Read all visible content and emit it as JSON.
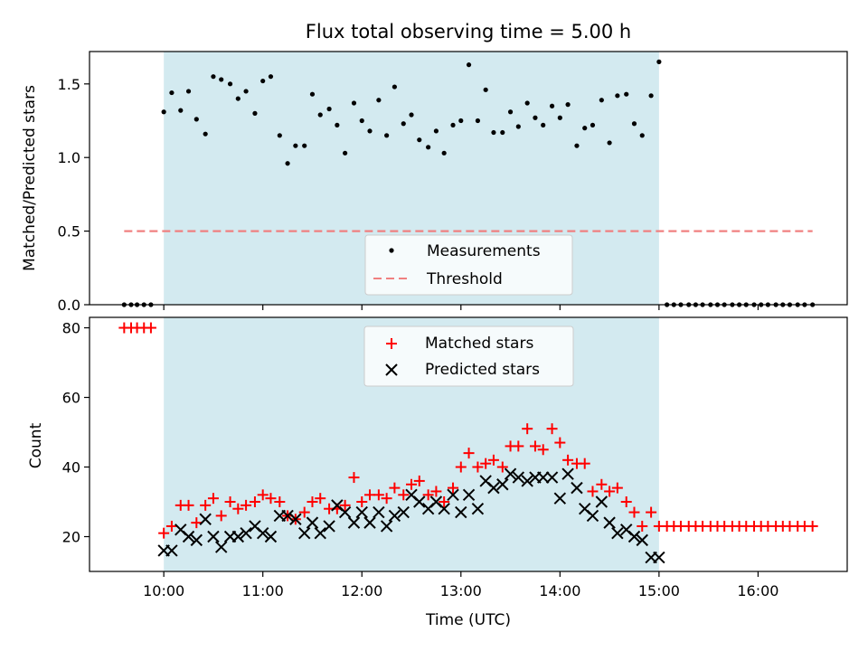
{
  "chart_data": [
    {
      "type": "scatter",
      "panel": "top",
      "title": "Flux total observing time = 5.00 h",
      "ylabel": "Matched/Predicted stars",
      "ylim": [
        0,
        1.72
      ],
      "yticks": [
        0.0,
        0.5,
        1.0,
        1.5
      ],
      "ytick_labels": [
        "0.0",
        "0.5",
        "1.0",
        "1.5"
      ],
      "observing_window": {
        "start_h": 10.0,
        "end_h": 15.0,
        "color": "#d3eaf0"
      },
      "series": [
        {
          "name": "Measurements",
          "marker": "dot",
          "color": "#000000",
          "x_h": [
            9.6,
            9.67,
            9.73,
            9.8,
            9.87,
            10.0,
            10.08,
            10.17,
            10.25,
            10.33,
            10.42,
            10.5,
            10.58,
            10.67,
            10.75,
            10.83,
            10.92,
            11.0,
            11.08,
            11.17,
            11.25,
            11.33,
            11.42,
            11.5,
            11.58,
            11.67,
            11.75,
            11.83,
            11.92,
            12.0,
            12.08,
            12.17,
            12.25,
            12.33,
            12.42,
            12.5,
            12.58,
            12.67,
            12.75,
            12.83,
            12.92,
            13.0,
            13.08,
            13.17,
            13.25,
            13.33,
            13.42,
            13.5,
            13.58,
            13.67,
            13.75,
            13.83,
            13.92,
            14.0,
            14.08,
            14.17,
            14.25,
            14.33,
            14.42,
            14.5,
            14.58,
            14.67,
            14.75,
            14.83,
            14.92,
            15.0,
            15.08,
            15.15,
            15.22,
            15.3,
            15.37,
            15.44,
            15.52,
            15.59,
            15.66,
            15.74,
            15.81,
            15.88,
            15.96,
            16.03,
            16.1,
            16.18,
            16.25,
            16.32,
            16.4,
            16.47,
            16.55
          ],
          "y": [
            0,
            0,
            0,
            0,
            0,
            1.31,
            1.44,
            1.32,
            1.45,
            1.26,
            1.16,
            1.55,
            1.53,
            1.5,
            1.4,
            1.45,
            1.3,
            1.52,
            1.55,
            1.15,
            0.96,
            1.08,
            1.08,
            1.43,
            1.29,
            1.33,
            1.22,
            1.03,
            1.37,
            1.25,
            1.18,
            1.39,
            1.15,
            1.48,
            1.23,
            1.29,
            1.12,
            1.07,
            1.18,
            1.03,
            1.22,
            1.25,
            1.63,
            1.25,
            1.46,
            1.17,
            1.17,
            1.31,
            1.21,
            1.37,
            1.27,
            1.22,
            1.35,
            1.27,
            1.36,
            1.08,
            1.2,
            1.22,
            1.39,
            1.1,
            1.42,
            1.43,
            1.23,
            1.15,
            1.42,
            1.65,
            0,
            0,
            0,
            0,
            0,
            0,
            0,
            0,
            0,
            0,
            0,
            0,
            0,
            0,
            0,
            0,
            0,
            0,
            0,
            0,
            0
          ]
        },
        {
          "name": "Threshold",
          "marker": "dashed-line",
          "color": "#f08080",
          "x_h": [
            9.6,
            16.55
          ],
          "y": [
            0.5,
            0.5
          ]
        }
      ],
      "legend": "lower-center"
    },
    {
      "type": "scatter",
      "panel": "bottom",
      "xlabel": "Time (UTC)",
      "ylabel": "Count",
      "xlim_h": [
        9.25,
        16.9
      ],
      "ylim": [
        10,
        83
      ],
      "xticks_h": [
        10,
        11,
        12,
        13,
        14,
        15,
        16
      ],
      "xtick_labels": [
        "10:00",
        "11:00",
        "12:00",
        "13:00",
        "14:00",
        "15:00",
        "16:00"
      ],
      "yticks": [
        20,
        40,
        60,
        80
      ],
      "ytick_labels": [
        "20",
        "40",
        "60",
        "80"
      ],
      "observing_window": {
        "start_h": 10.0,
        "end_h": 15.0,
        "color": "#d3eaf0"
      },
      "series": [
        {
          "name": "Matched stars",
          "marker": "plus",
          "color": "#ff0000",
          "x_h": [
            9.6,
            9.67,
            9.73,
            9.8,
            9.87,
            10.0,
            10.08,
            10.17,
            10.25,
            10.33,
            10.42,
            10.5,
            10.58,
            10.67,
            10.75,
            10.83,
            10.92,
            11.0,
            11.08,
            11.17,
            11.25,
            11.33,
            11.42,
            11.5,
            11.58,
            11.67,
            11.75,
            11.83,
            11.92,
            12.0,
            12.08,
            12.17,
            12.25,
            12.33,
            12.42,
            12.5,
            12.58,
            12.67,
            12.75,
            12.83,
            12.92,
            13.0,
            13.08,
            13.17,
            13.25,
            13.33,
            13.42,
            13.5,
            13.58,
            13.67,
            13.75,
            13.83,
            13.92,
            14.0,
            14.08,
            14.17,
            14.25,
            14.33,
            14.42,
            14.5,
            14.58,
            14.67,
            14.75,
            14.83,
            14.92,
            15.0,
            15.08,
            15.15,
            15.22,
            15.3,
            15.37,
            15.44,
            15.52,
            15.59,
            15.66,
            15.74,
            15.81,
            15.88,
            15.96,
            16.03,
            16.1,
            16.18,
            16.25,
            16.32,
            16.4,
            16.47,
            16.55
          ],
          "y": [
            80,
            80,
            80,
            80,
            80,
            21,
            23,
            29,
            29,
            24,
            29,
            31,
            26,
            30,
            28,
            29,
            30,
            32,
            31,
            30,
            26,
            25,
            27,
            30,
            31,
            28,
            28,
            29,
            37,
            30,
            32,
            32,
            31,
            34,
            32,
            35,
            36,
            32,
            33,
            30,
            34,
            40,
            44,
            40,
            41,
            42,
            40,
            46,
            46,
            51,
            46,
            45,
            51,
            47,
            42,
            41,
            41,
            33,
            35,
            33,
            34,
            30,
            27,
            23,
            27,
            23,
            23,
            23,
            23,
            23,
            23,
            23,
            23,
            23,
            23,
            23,
            23,
            23,
            23,
            23,
            23,
            23,
            23,
            23,
            23,
            23,
            23
          ]
        },
        {
          "name": "Predicted stars",
          "marker": "x",
          "color": "#000000",
          "x_h": [
            10.0,
            10.08,
            10.17,
            10.25,
            10.33,
            10.42,
            10.5,
            10.58,
            10.67,
            10.75,
            10.83,
            10.92,
            11.0,
            11.08,
            11.17,
            11.25,
            11.33,
            11.42,
            11.5,
            11.58,
            11.67,
            11.75,
            11.83,
            11.92,
            12.0,
            12.08,
            12.17,
            12.25,
            12.33,
            12.42,
            12.5,
            12.58,
            12.67,
            12.75,
            12.83,
            12.92,
            13.0,
            13.08,
            13.17,
            13.25,
            13.33,
            13.42,
            13.5,
            13.58,
            13.67,
            13.75,
            13.83,
            13.92,
            14.0,
            14.08,
            14.17,
            14.25,
            14.33,
            14.42,
            14.5,
            14.58,
            14.67,
            14.75,
            14.83,
            14.92,
            15.0
          ],
          "y": [
            16,
            16,
            22,
            20,
            19,
            25,
            20,
            17,
            20,
            20,
            21,
            23,
            21,
            20,
            26,
            26,
            25,
            21,
            24,
            21,
            23,
            29,
            27,
            24,
            27,
            24,
            27,
            23,
            26,
            27,
            32,
            30,
            28,
            30,
            28,
            32,
            27,
            32,
            28,
            36,
            34,
            35,
            38,
            37,
            36,
            37,
            37,
            37,
            31,
            38,
            34,
            28,
            26,
            30,
            24,
            21,
            22,
            20,
            19,
            14,
            14
          ]
        }
      ],
      "legend": "upper-center"
    }
  ]
}
